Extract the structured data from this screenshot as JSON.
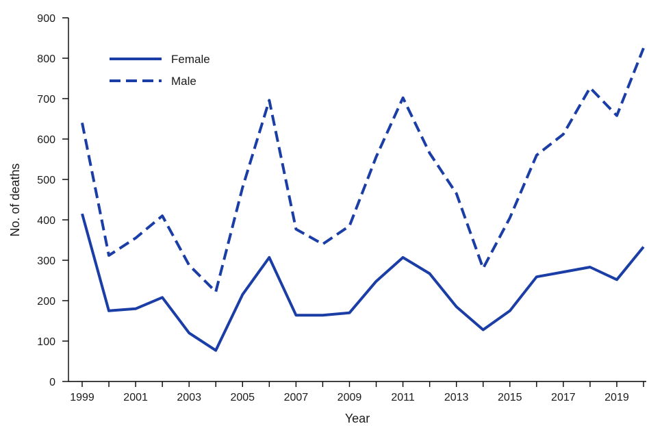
{
  "chart_data": {
    "type": "line",
    "xlabel": "Year",
    "ylabel": "No. of deaths",
    "x": [
      1999,
      2000,
      2001,
      2002,
      2003,
      2004,
      2005,
      2006,
      2007,
      2008,
      2009,
      2010,
      2011,
      2012,
      2013,
      2014,
      2015,
      2016,
      2017,
      2018,
      2019,
      2020
    ],
    "xticks": [
      "1999",
      "2001",
      "2003",
      "2005",
      "2007",
      "2009",
      "2011",
      "2013",
      "2015",
      "2017",
      "2019"
    ],
    "yticks": [
      "0",
      "100",
      "200",
      "300",
      "400",
      "500",
      "600",
      "700",
      "800",
      "900"
    ],
    "ylim": [
      0,
      900
    ],
    "grid": false,
    "legend_position": "top-left",
    "series": [
      {
        "name": "Female",
        "style": "solid",
        "color": "#1b3ea6",
        "values": [
          415,
          175,
          180,
          208,
          120,
          77,
          215,
          307,
          164,
          164,
          170,
          248,
          307,
          267,
          185,
          128,
          175,
          259,
          271,
          283,
          252,
          333
        ]
      },
      {
        "name": "Male",
        "style": "dashed",
        "color": "#1b3ea6",
        "values": [
          640,
          312,
          355,
          410,
          288,
          222,
          480,
          696,
          377,
          340,
          385,
          556,
          702,
          565,
          465,
          280,
          405,
          560,
          612,
          727,
          658,
          825
        ]
      }
    ]
  }
}
